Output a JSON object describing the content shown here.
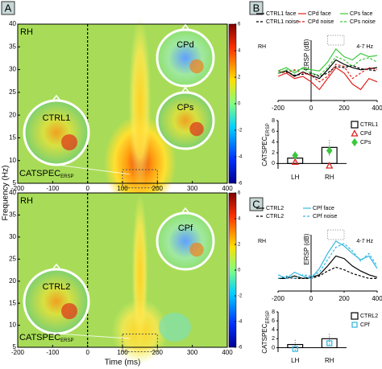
{
  "chart_data": [
    {
      "type": "heatmap",
      "panel": "A",
      "title": "RH",
      "xlim": [
        -200,
        400
      ],
      "xticks": [
        -200,
        -100,
        0,
        100,
        200,
        300,
        400
      ],
      "ylim": [
        5,
        40
      ],
      "yticks": [
        5,
        10,
        15,
        20,
        25,
        30,
        35,
        40
      ],
      "colorbar": {
        "lim": [
          -6,
          6
        ],
        "ticks": [
          -6,
          -4,
          -2,
          0,
          2,
          4,
          6
        ]
      },
      "annotations": [
        "CTRL1",
        "CPd",
        "CPs"
      ],
      "catspec": {
        "main": "CATSPEC",
        "sub": "ERSP"
      }
    },
    {
      "type": "heatmap",
      "title": "RH",
      "xlabel": "Time (ms)",
      "ylabel": "Frequency (Hz)",
      "xlim": [
        -200,
        400
      ],
      "xticks": [
        -200,
        -100,
        0,
        100,
        200,
        300,
        400
      ],
      "ylim": [
        5,
        40
      ],
      "yticks": [
        5,
        10,
        15,
        20,
        25,
        30,
        35,
        40
      ],
      "colorbar": {
        "lim": [
          -6,
          6
        ],
        "ticks": [
          -6,
          -4,
          -2,
          0,
          2,
          4,
          6
        ]
      },
      "annotations": [
        "CTRL2",
        "CPf"
      ],
      "catspec": {
        "main": "CATSPEC",
        "sub": "ERSP"
      }
    },
    {
      "type": "line",
      "panel": "B",
      "title": "RH",
      "subtitle": "4-7 Hz",
      "ylabel": "ERSP (dB)",
      "x": [
        -200,
        -150,
        -100,
        -50,
        0,
        50,
        100,
        150,
        200,
        250,
        300,
        350,
        400
      ],
      "xlim": [
        -200,
        400
      ],
      "xticks": [
        -200,
        0,
        200,
        400
      ],
      "ylim": [
        -2.5,
        3
      ],
      "series": [
        {
          "name": "CTRL1 face",
          "color": "#000000",
          "dash": false,
          "values": [
            0,
            0.2,
            -0.3,
            0.1,
            -0.2,
            -0.5,
            0.3,
            1.2,
            0.8,
            0.5,
            0.3,
            0.4,
            0.5
          ]
        },
        {
          "name": "CTRL1 noise",
          "color": "#000000",
          "dash": true,
          "values": [
            0,
            0.1,
            -0.2,
            -0.1,
            0,
            -0.3,
            0,
            0.6,
            0.5,
            0.7,
            0.4,
            0.3,
            0.2
          ]
        },
        {
          "name": "CPd face",
          "color": "#e0201c",
          "dash": false,
          "values": [
            -0.3,
            0,
            -0.5,
            -0.3,
            -0.8,
            -1.5,
            -0.5,
            0.5,
            0,
            -1,
            -1.5,
            -0.5,
            -0.8
          ]
        },
        {
          "name": "CPd noise",
          "color": "#e0201c",
          "dash": true,
          "values": [
            0.2,
            0,
            0.3,
            0,
            -0.2,
            -0.8,
            -0.3,
            0.8,
            0.6,
            -0.5,
            0,
            0.5,
            0.3
          ]
        },
        {
          "name": "CPs face",
          "color": "#3cc83c",
          "dash": false,
          "values": [
            0.2,
            0.5,
            0,
            0.5,
            0.3,
            0.2,
            1,
            2.2,
            1.5,
            1.2,
            1.8,
            1.5,
            1.6
          ]
        },
        {
          "name": "CPs noise",
          "color": "#3cc83c",
          "dash": true,
          "values": [
            0,
            0.3,
            0.2,
            0.4,
            0,
            -0.2,
            0.5,
            1.5,
            1.2,
            0.6,
            1.2,
            1.4,
            1.0
          ]
        }
      ]
    },
    {
      "type": "bar",
      "categories": [
        "LH",
        "RH"
      ],
      "ylabel": {
        "main": "CATSPEC",
        "sub": "ERSP"
      },
      "ylim": [
        -1,
        8
      ],
      "yticks": [
        0,
        2,
        4,
        6,
        8
      ],
      "series": [
        {
          "name": "CTRL1",
          "color": "#000000",
          "values": [
            1.0,
            3.0
          ],
          "errors": [
            1.2,
            1.5
          ]
        },
        {
          "name": "CPd",
          "color": "#e0201c",
          "marker": "triangle",
          "values": [
            0.3,
            -0.4
          ]
        },
        {
          "name": "CPs",
          "color": "#3cc83c",
          "marker": "diamond",
          "values": [
            1.5,
            2.4
          ]
        }
      ]
    },
    {
      "type": "line",
      "panel": "C",
      "title": "RH",
      "subtitle": "4-7 Hz",
      "ylabel": "ERSP (dB)",
      "x": [
        -200,
        -150,
        -100,
        -50,
        0,
        50,
        100,
        150,
        200,
        250,
        300,
        350,
        400
      ],
      "xlim": [
        -200,
        400
      ],
      "xticks": [
        -200,
        0,
        200,
        400
      ],
      "ylim": [
        -1,
        3.5
      ],
      "series": [
        {
          "name": "CTRL2",
          "color": "#000000",
          "dash": false,
          "values": [
            0,
            0,
            0.2,
            0,
            0.1,
            0.3,
            1,
            1.8,
            1.6,
            1,
            0.6,
            0.3,
            0.1
          ]
        },
        {
          "name": "CTRL2",
          "color": "#000000",
          "dash": true,
          "values": [
            0,
            0.1,
            0,
            0,
            0,
            0.2,
            0.6,
            0.9,
            0.7,
            0.4,
            0.2,
            0,
            0
          ]
        },
        {
          "name": "CPf face",
          "color": "#38b8e0",
          "dash": false,
          "values": [
            0.3,
            0,
            0.5,
            0.2,
            0,
            0.8,
            2,
            3,
            2.6,
            2,
            1.5,
            1.8,
            0.8
          ]
        },
        {
          "name": "CPf noise",
          "color": "#38b8e0",
          "dash": true,
          "values": [
            0,
            0.2,
            0,
            0.3,
            0.2,
            0.5,
            1.5,
            2.5,
            2.8,
            2.2,
            1.4,
            2,
            1
          ]
        }
      ]
    },
    {
      "type": "bar",
      "categories": [
        "LH",
        "RH"
      ],
      "ylabel": {
        "main": "CATSPEC",
        "sub": "ERSP"
      },
      "ylim": [
        -1,
        8
      ],
      "yticks": [
        0,
        2,
        4,
        6,
        8
      ],
      "series": [
        {
          "name": "CTRL2",
          "color": "#000000",
          "values": [
            0.7,
            2.0
          ],
          "errors": [
            1.3,
            1.3
          ]
        },
        {
          "name": "CPf",
          "color": "#38b8e0",
          "marker": "square",
          "values": [
            -0.3,
            1.0
          ]
        }
      ]
    }
  ]
}
